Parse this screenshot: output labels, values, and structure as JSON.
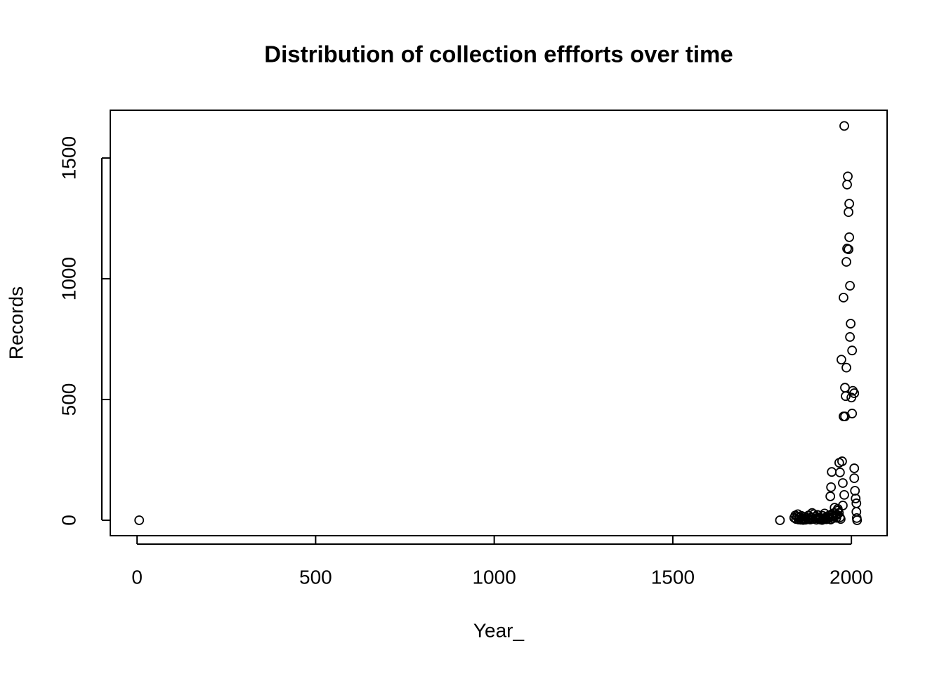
{
  "chart_data": {
    "type": "scatter",
    "title": "Distribution of collection effforts over time",
    "x_label": "Year_",
    "y_label": "Records",
    "xlim": [
      -75,
      2100
    ],
    "ylim": [
      -64,
      1698
    ],
    "xticks": [
      0,
      500,
      1000,
      1500,
      2000
    ],
    "yticks": [
      0,
      500,
      1000,
      1500
    ],
    "marker": "open-circle",
    "color": "#000000",
    "x": [
      6,
      1800,
      1980,
      1990,
      1988,
      1994,
      1992,
      1994,
      1988,
      1992,
      1986,
      1996,
      1978,
      1998,
      1996,
      2002,
      1972,
      1986,
      1982,
      2004,
      2008,
      2000,
      1984,
      1978,
      1982,
      2002,
      1966,
      1974,
      2008,
      1945,
      1968,
      2008,
      1976,
      1943,
      2010,
      1980,
      1941,
      2012,
      2014,
      1976,
      1953,
      1962,
      2014,
      2015,
      2016,
      1840,
      1843,
      1845,
      1848,
      1850,
      1852,
      1855,
      1858,
      1860,
      1862,
      1865,
      1868,
      1870,
      1872,
      1875,
      1878,
      1880,
      1882,
      1885,
      1888,
      1890,
      1892,
      1895,
      1898,
      1900,
      1902,
      1905,
      1908,
      1910,
      1912,
      1915,
      1918,
      1920,
      1922,
      1925,
      1928,
      1930,
      1932,
      1935,
      1938,
      1940,
      1942,
      1945,
      1948,
      1950,
      1952,
      1955,
      1958,
      1960,
      1962,
      1965,
      1968,
      1970
    ],
    "y": [
      0,
      0,
      1633,
      1424,
      1390,
      1311,
      1276,
      1172,
      1125,
      1122,
      1070,
      971,
      922,
      814,
      759,
      703,
      665,
      632,
      549,
      536,
      526,
      508,
      514,
      430,
      430,
      442,
      238,
      244,
      215,
      200,
      198,
      174,
      154,
      137,
      122,
      105,
      99,
      90,
      70,
      61,
      52,
      47,
      35,
      9,
      0,
      10,
      20,
      5,
      15,
      25,
      3,
      12,
      2,
      18,
      8,
      1,
      6,
      14,
      2,
      9,
      4,
      20,
      7,
      3,
      11,
      30,
      5,
      25,
      8,
      15,
      2,
      22,
      6,
      12,
      3,
      9,
      1,
      18,
      5,
      28,
      10,
      4,
      16,
      7,
      20,
      12,
      3,
      25,
      8,
      15,
      30,
      18,
      10,
      22,
      40,
      30,
      12,
      5
    ]
  }
}
